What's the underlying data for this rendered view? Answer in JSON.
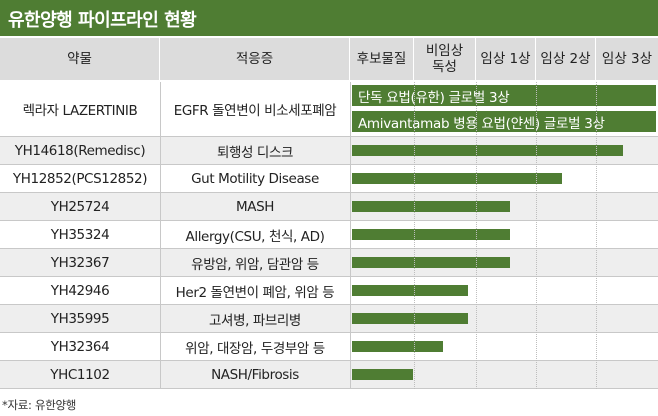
{
  "title": "유한양행 파이프라인 현황",
  "headers": {
    "drug": "약물",
    "indication": "적응증",
    "stages": [
      "후보물질",
      "비임상\n독성",
      "임상 1상",
      "임상 2상",
      "임상 3상"
    ]
  },
  "rows": [
    {
      "drug": "렉라자 LAZERTINIB",
      "indication": "EGFR 돌연변이 비소세포폐암",
      "stage_labels": [
        "단독 요법(유한) 글로벌 3상",
        "Amivantamab 병용 요법(얀센) 글로벌 3상"
      ],
      "progress_stage": 5,
      "progress_fraction": 1.0
    },
    {
      "drug": "YH14618(Remedisc)",
      "indication": "퇴행성 디스크",
      "progress_stage": 4.45,
      "progress_fraction": 0.89
    },
    {
      "drug": "YH12852(PCS12852)",
      "indication": "Gut Motility Disease",
      "progress_stage": 3.45,
      "progress_fraction": 0.69
    },
    {
      "drug": "YH25724",
      "indication": "MASH",
      "progress_stage": 2.6,
      "progress_fraction": 0.52
    },
    {
      "drug": "YH35324",
      "indication": "Allergy(CSU, 천식, AD)",
      "progress_stage": 2.6,
      "progress_fraction": 0.52
    },
    {
      "drug": "YH32367",
      "indication": "유방암, 위암, 담관암 등",
      "progress_stage": 2.6,
      "progress_fraction": 0.52
    },
    {
      "drug": "YH42946",
      "indication": "Her2 돌연변이 폐암, 위암 등",
      "progress_stage": 1.9,
      "progress_fraction": 0.38
    },
    {
      "drug": "YH35995",
      "indication": "고셔병, 파브리병",
      "progress_stage": 1.9,
      "progress_fraction": 0.38
    },
    {
      "drug": "YH32364",
      "indication": "위암, 대장암, 두경부암 등",
      "progress_stage": 1.5,
      "progress_fraction": 0.3
    },
    {
      "drug": "YHC1102",
      "indication": "NASH/Fibrosis",
      "progress_stage": 1.0,
      "progress_fraction": 0.2
    }
  ],
  "colors": {
    "accent": "#4f7d33",
    "header_bg": "#dcdcdc",
    "alt_row": "#eeeeee"
  },
  "footer": "*자료: 유한양행"
}
